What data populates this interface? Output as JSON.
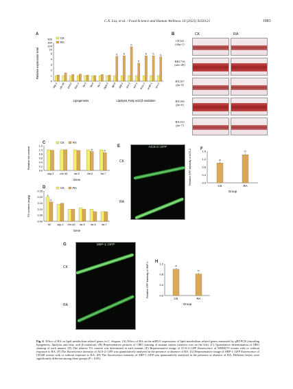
{
  "header": {
    "journal": "C.X. Liu, et al. / Food Science and Human Wellness 14 (2025) 9250121",
    "page_number": "1883"
  },
  "colors": {
    "ck": "#f4ef6a",
    "ra": "#d9a85b",
    "bar_outline": "#8a6d2c"
  },
  "panel_letters": [
    "A",
    "B",
    "C",
    "D",
    "E",
    "F",
    "G",
    "H"
  ],
  "panel_b": {
    "columns": [
      "CK",
      "RA"
    ],
    "strains": [
      {
        "name": "CE541",
        "gene": "(sbp-1)"
      },
      {
        "name": "RB1716",
        "gene": "(nhr-49)"
      },
      {
        "name": "BX107",
        "gene": "(fat-5)"
      },
      {
        "name": "BX106",
        "gene": "(fat-6)"
      },
      {
        "name": "BX153",
        "gene": "(fat-7)"
      }
    ]
  },
  "panel_e": {
    "title": "ACS-2::GFP",
    "rows": [
      "CK",
      "RA"
    ]
  },
  "panel_g": {
    "title": "SBP-1::GFP",
    "rows": [
      "CK",
      "RA"
    ]
  },
  "chart_data": [
    {
      "panel": "A",
      "type": "bar",
      "ylabel": "Relative expression level",
      "ytick_labels": [
        "0",
        "1",
        "2",
        "3",
        "4",
        "5",
        "10",
        "104",
        "300",
        "500"
      ],
      "legend": [
        "CK",
        "RA"
      ],
      "group_labels": [
        "Lipogenesis",
        "Lipolysis Fatty acid β-oxidation"
      ],
      "categories": [
        "sbp-1",
        "nhr-49",
        "pod-2",
        "fasn-1",
        "fat-5",
        "fat-6",
        "fat-7",
        "dgat-2",
        "lipl-4",
        "atgl-1",
        "acs-2",
        "ech-1",
        "acox-1",
        "acdh-1",
        "aco-1"
      ],
      "series": [
        {
          "name": "CK",
          "values": [
            1,
            1,
            1,
            1,
            1,
            1,
            1,
            1,
            1,
            1,
            1,
            1,
            1,
            1,
            1
          ]
        },
        {
          "name": "RA",
          "values": [
            1.1,
            1.5,
            1.2,
            1.3,
            1.1,
            1.0,
            1.2,
            1.1,
            4.5,
            4.6,
            6,
            3.3,
            4.6,
            4.6,
            4.4
          ]
        }
      ],
      "sig_labels_ra": [
        "",
        "",
        "",
        "",
        "",
        "",
        "",
        "",
        "b",
        "b",
        "b",
        "b",
        "b",
        "b",
        "b"
      ]
    },
    {
      "panel": "C",
      "type": "bar",
      "ylabel": "Relative fat content",
      "xlabel": "Gene",
      "yticks": [
        "0.0",
        "0.2",
        "0.4",
        "0.6",
        "0.8",
        "1.0",
        "1.2"
      ],
      "ylim": [
        0,
        1.2
      ],
      "legend": [
        "CK",
        "RA"
      ],
      "categories": [
        "sbp-1",
        "nhr-49",
        "fat-5",
        "fat-6",
        "fat-7"
      ],
      "series": [
        {
          "name": "CK",
          "values": [
            1.0,
            1.0,
            1.0,
            1.0,
            1.0
          ]
        },
        {
          "name": "RA",
          "values": [
            0.98,
            1.01,
            0.97,
            0.92,
            0.86
          ]
        }
      ],
      "sig_labels_ra": [
        "",
        "",
        "",
        "b",
        "b"
      ]
    },
    {
      "panel": "D",
      "type": "bar",
      "ylabel": "TG content (mg/g)",
      "xlabel": "Gene",
      "yticks": [
        "0.00",
        "0.05",
        "0.10",
        "0.15",
        "0.20",
        "0.25"
      ],
      "ylim": [
        0,
        0.25
      ],
      "legend": [
        "CK",
        "RA"
      ],
      "categories": [
        "N2",
        "sbp-1",
        "nhr-49",
        "fat-5",
        "fat-6",
        "fat-7"
      ],
      "series": [
        {
          "name": "CK",
          "values": [
            0.2,
            0.14,
            0.1,
            0.11,
            0.1,
            0.08
          ]
        },
        {
          "name": "RA",
          "values": [
            0.16,
            0.15,
            0.1,
            0.1,
            0.08,
            0.08
          ]
        }
      ],
      "sig_labels_ck": [
        "a",
        "",
        "",
        "",
        "",
        ""
      ],
      "sig_labels_ra": [
        "b",
        "",
        "",
        "",
        "",
        ""
      ]
    },
    {
      "panel": "F",
      "type": "bar",
      "ylabel": "Relative GFP intensity of ACS-2",
      "xlabel": "Group",
      "yticks": [
        "0.0",
        "0.4",
        "0.8",
        "1.2",
        "1.6"
      ],
      "ylim": [
        0,
        1.6
      ],
      "categories": [
        "CK",
        "RA"
      ],
      "values": [
        1.0,
        1.42
      ],
      "sig_labels": [
        "a",
        "b"
      ]
    },
    {
      "panel": "H",
      "type": "bar",
      "ylabel": "Relative GFP intensity of SBP-1",
      "xlabel": "Group",
      "yticks": [
        "0.0",
        "0.4",
        "0.8",
        "1.2"
      ],
      "ylim": [
        0,
        1.2
      ],
      "categories": [
        "CK",
        "RA"
      ],
      "values": [
        1.0,
        0.82
      ],
      "sig_labels": [
        "a",
        "b"
      ]
    }
  ],
  "caption": {
    "figure_number": "Fig. 6",
    "text": "Effect of RA on lipid metabolism-related genes in C. elegans. (A) Effect of RA on the mRNA expressions of lipid metabolism related genes measured by qRT-PCR (encoding lipogenesis, lipolysis and fatty acid β-oxidation). (B) Representative pictures of ORO staining of mutant strains (anterior was on the left). (C) Quantitative determination of ORO staining of each mutant. (D) The relative TG content was determined in each mutant. (E) Representative image of ACS-2::GFP fluorescence of WBM170 worms with or without exposure to RA. (F) The fluorescence intensity of ACS-2::GFP was quantitatively analyzed in the presence or absence of RA. (G) Representative image of SBP-1::GFP fluorescence of CE548 worms with or without exposure to RA. (H) The fluorescence intensity of SBP-1::GFP was quantitatively analyzed in the presence or absence of RA. Different letters were significantly different among these groups (P < 0.05)."
  }
}
